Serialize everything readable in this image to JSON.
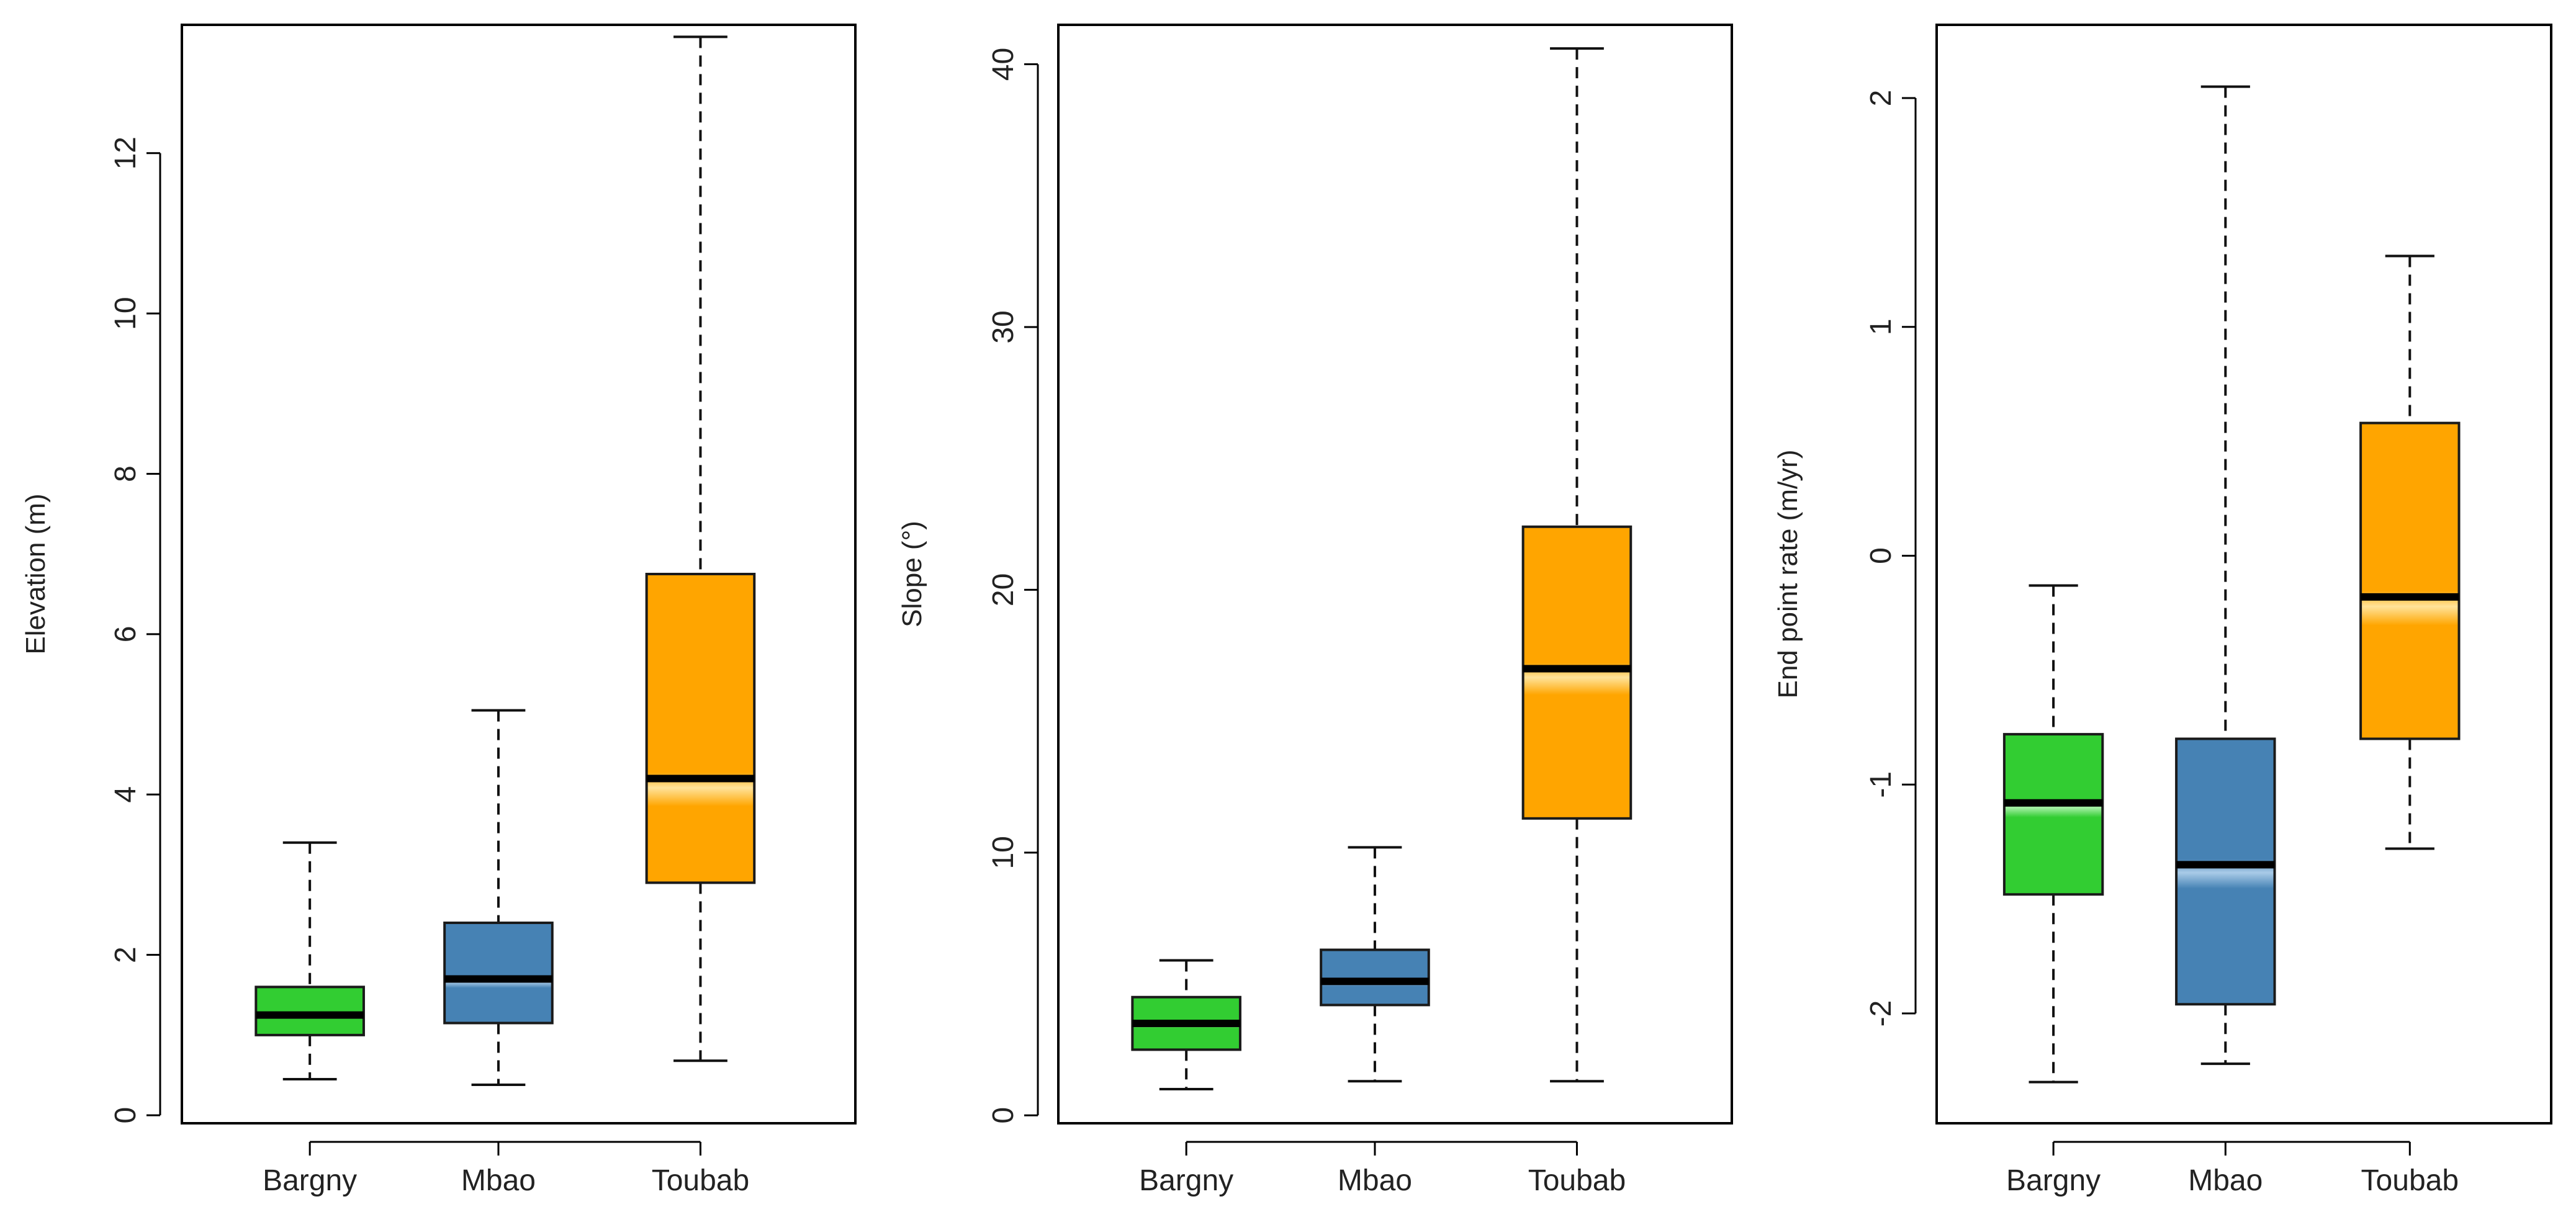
{
  "colors": {
    "bargny": "#32CD32",
    "mbao": "#4682B4",
    "toubab": "#FFA500",
    "frame": "#000000",
    "whisker": "#111111",
    "median": "#000000"
  },
  "chart_data": [
    {
      "type": "boxplot",
      "ylabel": "Elevation (m)",
      "ylim": [
        -0.1,
        13.6
      ],
      "yticks": [
        0,
        2,
        4,
        6,
        8,
        10,
        12
      ],
      "ytick_labels": [
        "0",
        "2",
        "4",
        "6",
        "8",
        "10",
        "12"
      ],
      "categories": [
        "Bargny",
        "Mbao",
        "Toubab"
      ],
      "series": [
        {
          "name": "Bargny",
          "color_key": "bargny",
          "min": 0.45,
          "q1": 1.0,
          "median": 1.25,
          "q3": 1.6,
          "max": 3.4
        },
        {
          "name": "Mbao",
          "color_key": "mbao",
          "min": 0.38,
          "q1": 1.15,
          "median": 1.7,
          "q3": 2.4,
          "max": 5.05
        },
        {
          "name": "Toubab",
          "color_key": "toubab",
          "min": 0.68,
          "q1": 2.9,
          "median": 4.2,
          "q3": 6.75,
          "max": 13.45
        }
      ]
    },
    {
      "type": "boxplot",
      "ylabel": "Slope (°)",
      "ylim": [
        -0.3,
        41.5
      ],
      "yticks": [
        0,
        10,
        20,
        30,
        40
      ],
      "ytick_labels": [
        "0",
        "10",
        "20",
        "30",
        "40"
      ],
      "categories": [
        "Bargny",
        "Mbao",
        "Toubab"
      ],
      "series": [
        {
          "name": "Bargny",
          "color_key": "bargny",
          "min": 1.0,
          "q1": 2.5,
          "median": 3.5,
          "q3": 4.5,
          "max": 5.9
        },
        {
          "name": "Mbao",
          "color_key": "mbao",
          "min": 1.3,
          "q1": 4.2,
          "median": 5.1,
          "q3": 6.3,
          "max": 10.2
        },
        {
          "name": "Toubab",
          "color_key": "toubab",
          "min": 1.3,
          "q1": 11.3,
          "median": 17.0,
          "q3": 22.4,
          "max": 40.6
        }
      ]
    },
    {
      "type": "boxplot",
      "ylabel": "End point rate (m/yr)",
      "ylim": [
        -2.48,
        2.32
      ],
      "yticks": [
        -2,
        -1,
        0,
        1,
        2
      ],
      "ytick_labels": [
        "-2",
        "-1",
        "0",
        "1",
        "2"
      ],
      "categories": [
        "Bargny",
        "Mbao",
        "Toubab"
      ],
      "series": [
        {
          "name": "Bargny",
          "color_key": "bargny",
          "min": -2.3,
          "q1": -1.48,
          "median": -1.08,
          "q3": -0.78,
          "max": -0.13
        },
        {
          "name": "Mbao",
          "color_key": "mbao",
          "min": -2.22,
          "q1": -1.96,
          "median": -1.35,
          "q3": -0.8,
          "max": 2.05
        },
        {
          "name": "Toubab",
          "color_key": "toubab",
          "min": -1.28,
          "q1": -0.8,
          "median": -0.18,
          "q3": 0.58,
          "max": 1.31
        }
      ]
    }
  ]
}
